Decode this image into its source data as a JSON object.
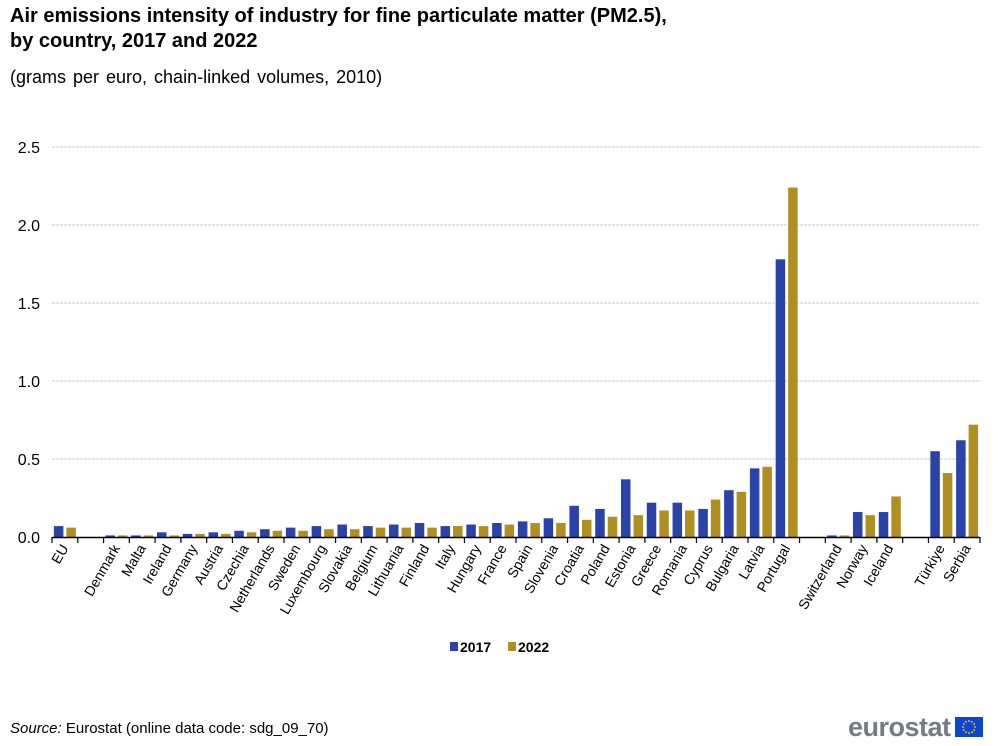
{
  "header": {
    "title_line1": "Air emissions intensity of industry for fine particulate matter (PM2.5),",
    "title_line2": "by country, 2017 and 2022",
    "subtitle": "(grams per euro, chain-linked volumes, 2010)"
  },
  "footer": {
    "source_label": "Source:",
    "source_text": " Eurostat (online data code: sdg_09_70)",
    "logo_text": "eurostat"
  },
  "colors": {
    "series_2017": "#2a43a8",
    "series_2022": "#b08f20",
    "grid": "#c8c8c8",
    "axis": "#000000"
  },
  "chart_data": {
    "type": "bar",
    "title": "Air emissions intensity of industry for fine particulate matter (PM2.5), by country, 2017 and 2022",
    "subtitle": "(grams per euro, chain-linked volumes, 2010)",
    "xlabel": "",
    "ylabel": "",
    "ylim": [
      0,
      2.5
    ],
    "yticks": [
      0.0,
      0.5,
      1.0,
      1.5,
      2.0,
      2.5
    ],
    "ytick_labels": [
      "0.0",
      "0.5",
      "1.0",
      "1.5",
      "2.0",
      "2.5"
    ],
    "grid": true,
    "legend_position": "bottom-center",
    "categories": [
      "EU",
      "",
      "Denmark",
      "Malta",
      "Ireland",
      "Germany",
      "Austria",
      "Czechia",
      "Netherlands",
      "Sweden",
      "Luxembourg",
      "Slovakia",
      "Belgium",
      "Lithuania",
      "Finland",
      "Italy",
      "Hungary",
      "France",
      "Spain",
      "Slovenia",
      "Croatia",
      "Poland",
      "Estonia",
      "Greece",
      "Romania",
      "Cyprus",
      "Bulgaria",
      "Latvia",
      "Portugal",
      "",
      "Switzerland",
      "Norway",
      "Iceland",
      "",
      "Türkiye",
      "Serbia"
    ],
    "series": [
      {
        "name": "2017",
        "values": [
          0.07,
          null,
          0.01,
          0.01,
          0.03,
          0.02,
          0.03,
          0.04,
          0.05,
          0.06,
          0.07,
          0.08,
          0.07,
          0.08,
          0.09,
          0.07,
          0.08,
          0.09,
          0.1,
          0.12,
          0.2,
          0.18,
          0.37,
          0.22,
          0.22,
          0.18,
          0.3,
          0.44,
          1.78,
          null,
          0.01,
          0.16,
          0.16,
          null,
          0.55,
          0.62
        ]
      },
      {
        "name": "2022",
        "values": [
          0.06,
          null,
          0.01,
          0.01,
          0.01,
          0.02,
          0.02,
          0.03,
          0.04,
          0.04,
          0.05,
          0.05,
          0.06,
          0.06,
          0.06,
          0.07,
          0.07,
          0.08,
          0.09,
          0.09,
          0.11,
          0.13,
          0.14,
          0.17,
          0.17,
          0.24,
          0.29,
          0.45,
          2.24,
          null,
          0.01,
          0.14,
          0.26,
          null,
          0.41,
          0.72
        ]
      }
    ]
  }
}
